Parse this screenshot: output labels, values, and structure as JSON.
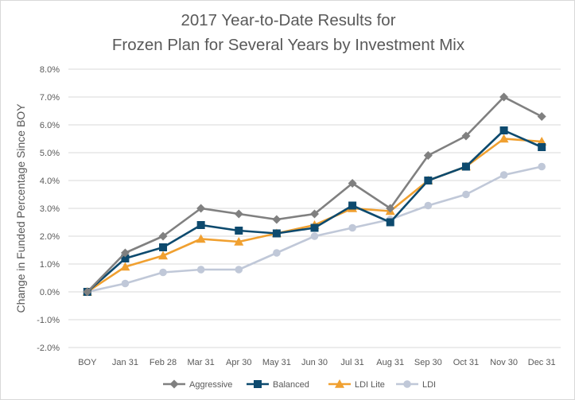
{
  "chart_data": {
    "type": "line",
    "title": [
      "2017 Year-to-Date Results for",
      "Frozen Plan for Several Years by Investment Mix"
    ],
    "xlabel": "",
    "ylabel": "Change in Funded Percentage Since BOY",
    "categories": [
      "BOY",
      "Jan 31",
      "Feb 28",
      "Mar 31",
      "Apr 30",
      "May 31",
      "Jun 30",
      "Jul 31",
      "Aug 31",
      "Sep 30",
      "Oct 31",
      "Nov 30",
      "Dec 31"
    ],
    "ylim": [
      -2.0,
      8.0
    ],
    "yticks": [
      "-2.0%",
      "-1.0%",
      "0.0%",
      "1.0%",
      "2.0%",
      "3.0%",
      "4.0%",
      "5.0%",
      "6.0%",
      "7.0%",
      "8.0%"
    ],
    "grid": "horizontal",
    "legend_position": "bottom",
    "series": [
      {
        "name": "Aggressive",
        "color": "#808080",
        "marker": "diamond",
        "values": [
          0.0,
          1.4,
          2.0,
          3.0,
          2.8,
          2.6,
          2.8,
          3.9,
          3.0,
          4.9,
          5.6,
          7.0,
          6.3
        ]
      },
      {
        "name": "Balanced",
        "color": "#0d4a6e",
        "marker": "square",
        "values": [
          0.0,
          1.2,
          1.6,
          2.4,
          2.2,
          2.1,
          2.3,
          3.1,
          2.5,
          4.0,
          4.5,
          5.8,
          5.2
        ]
      },
      {
        "name": "LDI Lite",
        "color": "#f0a030",
        "marker": "triangle",
        "values": [
          0.0,
          0.9,
          1.3,
          1.9,
          1.8,
          2.1,
          2.4,
          3.0,
          2.9,
          4.0,
          4.5,
          5.5,
          5.4
        ]
      },
      {
        "name": "LDI",
        "color": "#c0c8d8",
        "marker": "circle",
        "values": [
          0.0,
          0.3,
          0.7,
          0.8,
          0.8,
          1.4,
          2.0,
          2.3,
          2.6,
          3.1,
          3.5,
          4.2,
          4.5
        ]
      }
    ]
  }
}
